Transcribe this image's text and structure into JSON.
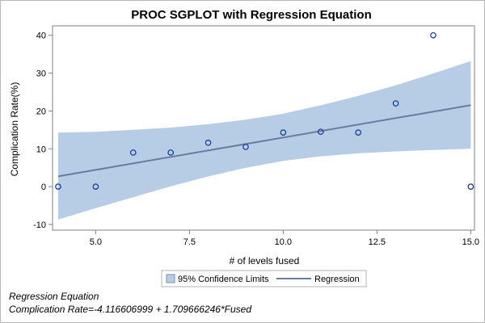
{
  "chart_data": {
    "type": "scatter",
    "title": "PROC SGPLOT with Regression Equation",
    "xlabel": "# of levels fused",
    "ylabel": "Complication Rate(%)",
    "xlim": [
      3.85,
      15.1
    ],
    "ylim": [
      -11.5,
      42.5
    ],
    "x_ticks": [
      5.0,
      7.5,
      10.0,
      12.5,
      15.0
    ],
    "x_tick_labels": [
      "5.0",
      "7.5",
      "10.0",
      "12.5",
      "15.0"
    ],
    "y_ticks": [
      -10,
      0,
      10,
      20,
      30,
      40
    ],
    "y_tick_labels": [
      "-10",
      "0",
      "10",
      "20",
      "30",
      "40"
    ],
    "points": [
      {
        "x": 4,
        "y": 0
      },
      {
        "x": 5,
        "y": 0
      },
      {
        "x": 6,
        "y": 9
      },
      {
        "x": 7,
        "y": 9
      },
      {
        "x": 8,
        "y": 11.6
      },
      {
        "x": 9,
        "y": 10.5
      },
      {
        "x": 10,
        "y": 14.3
      },
      {
        "x": 11,
        "y": 14.5
      },
      {
        "x": 12,
        "y": 14.3
      },
      {
        "x": 13,
        "y": 22
      },
      {
        "x": 14,
        "y": 40
      },
      {
        "x": 15,
        "y": 0
      }
    ],
    "regression": {
      "intercept": -4.116606999,
      "slope": 1.709666246
    },
    "confidence_band": {
      "x": [
        4,
        5,
        6,
        7,
        8,
        9,
        10,
        11,
        12,
        13,
        14,
        15
      ],
      "upper": [
        14.3,
        14.5,
        15.0,
        15.6,
        16.5,
        17.7,
        19.3,
        21.5,
        24.0,
        26.8,
        29.9,
        33.2
      ],
      "lower": [
        -8.7,
        -5.7,
        -2.8,
        0.1,
        2.7,
        5.0,
        6.8,
        8.0,
        8.8,
        9.3,
        9.7,
        10.0
      ]
    },
    "grid": false,
    "legend_position": "bottom-center",
    "legend": [
      {
        "label": "95% Confidence Limits",
        "kind": "band"
      },
      {
        "label": "Regression",
        "kind": "line"
      }
    ],
    "colors": {
      "band": "#b7cde6",
      "band_border": "#7d8fa8",
      "line": "#667d9e",
      "marker": "#1a3fa0",
      "axis": "#808080"
    }
  },
  "footnote": {
    "line1": "Regression Equation",
    "line2": "Complication Rate=-4.116606999 +  1.709666246*Fused"
  }
}
